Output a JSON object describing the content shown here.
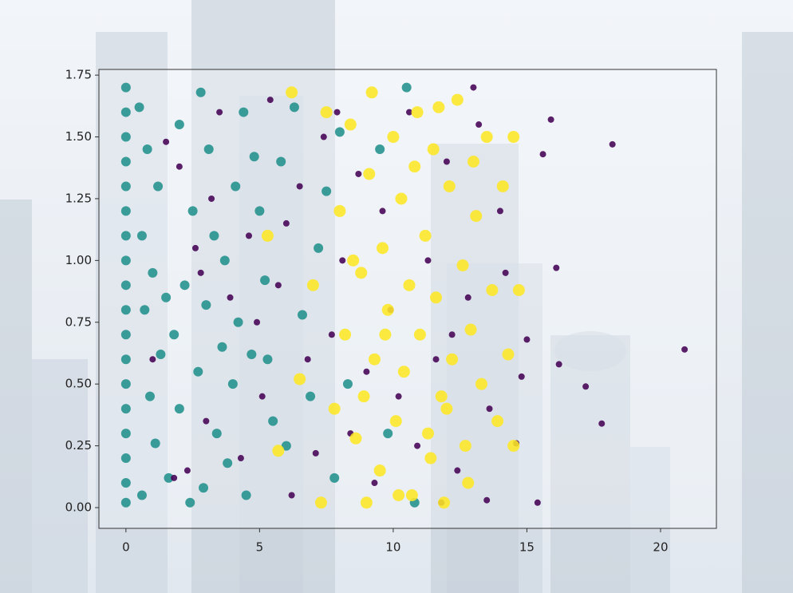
{
  "chart_data": {
    "type": "scatter",
    "xlim": [
      -1.01,
      22.09
    ],
    "ylim": [
      -0.084,
      1.773
    ],
    "xticks": [
      0,
      5,
      10,
      15,
      20
    ],
    "yticks": [
      {
        "value": 0,
        "label": "0.00"
      },
      0.25,
      {
        "value": 0.5,
        "label": "0.50"
      },
      0.75,
      {
        "value": 1,
        "label": "1.00"
      },
      1.25,
      {
        "value": 1.5,
        "label": "1.50"
      },
      1.75
    ],
    "series": [
      {
        "color": "#21918c",
        "x": [
          0,
          0,
          0,
          0,
          0,
          0,
          0,
          0,
          0,
          0,
          0,
          0,
          0,
          0,
          0,
          0,
          0,
          0,
          0.5,
          0.8,
          1.2,
          0.6,
          1.0,
          0.7,
          1.3,
          0.9,
          1.1,
          0.6,
          1.6,
          2.0,
          1.8,
          2.2,
          2.5,
          2.0,
          2.8,
          3.1,
          3.3,
          3.0,
          2.7,
          3.4,
          2.9,
          3.8,
          4.0,
          4.2,
          3.7,
          4.1,
          4.4,
          4.8,
          5.0,
          5.2,
          4.7,
          5.5,
          6.0,
          5.8,
          6.3,
          6.6,
          6.9,
          7.2,
          7.5,
          7.8,
          8.3,
          9.5,
          10.5,
          9.8,
          10.8,
          8.0,
          2.4,
          1.5,
          3.6,
          4.5,
          5.3
        ],
        "values": [
          0.02,
          0.1,
          0.2,
          0.3,
          0.4,
          0.5,
          0.6,
          0.7,
          0.8,
          0.9,
          1.0,
          1.1,
          1.2,
          1.3,
          1.4,
          1.5,
          1.6,
          1.7,
          1.62,
          1.45,
          1.3,
          1.1,
          0.95,
          0.8,
          0.62,
          0.45,
          0.26,
          0.05,
          0.12,
          0.4,
          0.7,
          0.9,
          1.2,
          1.55,
          1.68,
          1.45,
          1.1,
          0.82,
          0.55,
          0.3,
          0.08,
          0.18,
          0.5,
          0.75,
          1.0,
          1.3,
          1.6,
          1.42,
          1.2,
          0.92,
          0.62,
          0.35,
          0.25,
          1.4,
          1.62,
          0.78,
          0.45,
          1.05,
          1.28,
          0.12,
          0.5,
          1.45,
          1.7,
          0.3,
          0.02,
          1.52,
          0.02,
          0.85,
          0.65,
          0.05,
          0.6
        ]
      },
      {
        "color": "#440154",
        "x": [
          1.0,
          1.5,
          2.0,
          2.3,
          2.6,
          3.0,
          3.5,
          3.9,
          4.3,
          4.6,
          5.1,
          5.4,
          5.7,
          6.2,
          6.5,
          6.8,
          7.1,
          7.4,
          7.7,
          8.1,
          8.4,
          8.7,
          9.0,
          9.3,
          9.6,
          9.9,
          10.2,
          10.6,
          10.9,
          11.3,
          11.6,
          12.0,
          12.4,
          12.8,
          13.2,
          13.6,
          13.5,
          14.0,
          14.2,
          14.6,
          15.0,
          15.6,
          15.4,
          15.9,
          16.1,
          16.2,
          17.2,
          17.8,
          18.2,
          20.9,
          14.8,
          13.0,
          11.8,
          1.8,
          2.8,
          4.9,
          6.0,
          7.9,
          3.2,
          12.2
        ],
        "values": [
          0.6,
          1.48,
          1.38,
          0.15,
          1.05,
          0.35,
          1.6,
          0.85,
          0.2,
          1.1,
          0.45,
          1.65,
          0.9,
          0.05,
          1.3,
          0.6,
          0.22,
          1.5,
          0.7,
          1.0,
          0.3,
          1.35,
          0.55,
          0.1,
          1.2,
          0.8,
          0.45,
          1.6,
          0.25,
          1.0,
          0.6,
          1.4,
          0.15,
          0.85,
          1.55,
          0.4,
          0.03,
          1.2,
          0.95,
          0.26,
          0.68,
          1.43,
          0.02,
          1.57,
          0.97,
          0.58,
          0.49,
          0.34,
          1.47,
          0.64,
          0.53,
          1.7,
          0.02,
          0.12,
          0.95,
          0.75,
          1.15,
          1.6,
          1.25,
          0.7
        ]
      },
      {
        "color": "#fde725",
        "x": [
          5.3,
          5.7,
          6.2,
          6.5,
          7.0,
          7.3,
          7.5,
          7.8,
          8.0,
          8.2,
          8.4,
          8.6,
          8.8,
          9.0,
          9.1,
          9.3,
          9.5,
          9.6,
          9.8,
          10.0,
          10.1,
          10.3,
          10.4,
          10.6,
          10.7,
          10.9,
          11.0,
          11.2,
          11.3,
          11.5,
          11.6,
          11.8,
          11.9,
          12.1,
          12.2,
          12.4,
          12.6,
          12.7,
          12.9,
          13.1,
          13.3,
          13.5,
          13.7,
          13.9,
          14.1,
          14.3,
          14.5,
          14.7,
          14.5,
          13.0,
          12.8,
          9.2,
          8.5,
          11.4,
          10.2,
          8.9,
          12.0,
          10.8,
          9.7,
          11.7
        ],
        "values": [
          1.1,
          0.23,
          1.68,
          0.52,
          0.9,
          0.02,
          1.6,
          0.4,
          1.2,
          0.7,
          1.55,
          0.28,
          0.95,
          0.02,
          1.35,
          0.6,
          0.15,
          1.05,
          0.8,
          1.5,
          0.35,
          1.25,
          0.55,
          0.9,
          0.05,
          1.6,
          0.7,
          1.1,
          0.3,
          1.45,
          0.85,
          0.45,
          0.02,
          1.3,
          0.6,
          1.65,
          0.98,
          0.25,
          0.72,
          1.18,
          0.5,
          1.5,
          0.88,
          0.35,
          1.3,
          0.62,
          1.5,
          0.88,
          0.25,
          1.4,
          0.1,
          1.68,
          1.0,
          0.2,
          0.05,
          0.45,
          0.4,
          1.38,
          0.7,
          1.62
        ]
      }
    ]
  }
}
